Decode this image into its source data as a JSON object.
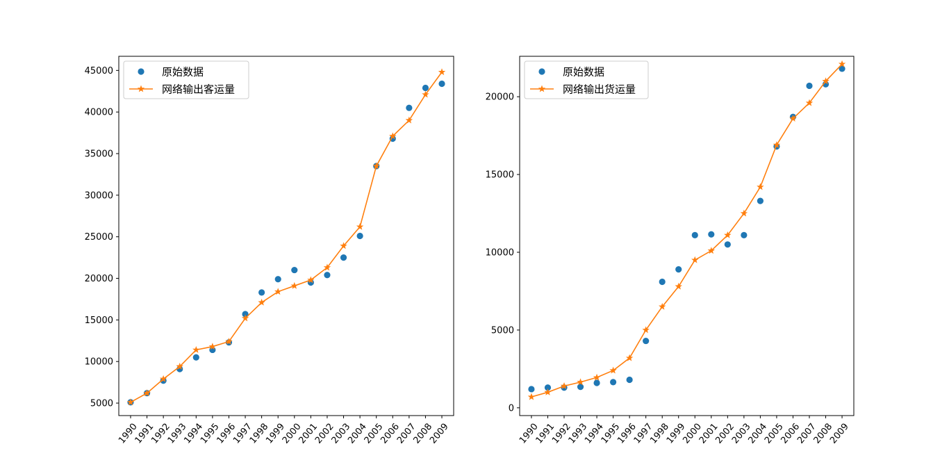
{
  "chart_data": [
    {
      "type": "scatter",
      "x": [
        "1990",
        "1991",
        "1992",
        "1993",
        "1994",
        "1995",
        "1996",
        "1997",
        "1998",
        "1999",
        "2000",
        "2001",
        "2002",
        "2003",
        "2004",
        "2005",
        "2006",
        "2007",
        "2008",
        "2009"
      ],
      "ylim": [
        3500,
        46700
      ],
      "yticks": [
        "5000",
        "10000",
        "15000",
        "20000",
        "25000",
        "30000",
        "35000",
        "40000",
        "45000"
      ],
      "grid": false,
      "legend_position": "top-left",
      "series": [
        {
          "name": "原始数据",
          "kind": "scatter",
          "color": "#1f77b4",
          "values": [
            5100,
            6200,
            7700,
            9100,
            10500,
            11400,
            12300,
            15700,
            18300,
            19900,
            21000,
            19500,
            20400,
            22500,
            25100,
            33500,
            36800,
            40500,
            42900,
            43400
          ]
        },
        {
          "name": "网络输出客运量",
          "kind": "line-star",
          "color": "#ff7f0e",
          "values": [
            5100,
            6200,
            7900,
            9400,
            11400,
            11800,
            12400,
            15200,
            17100,
            18400,
            19100,
            19800,
            21300,
            23900,
            26200,
            33500,
            37100,
            39000,
            42100,
            44800
          ]
        }
      ]
    },
    {
      "type": "scatter",
      "x": [
        "1990",
        "1991",
        "1992",
        "1993",
        "1994",
        "1995",
        "1996",
        "1997",
        "1998",
        "1999",
        "2000",
        "2001",
        "2002",
        "2003",
        "2004",
        "2005",
        "2006",
        "2007",
        "2008",
        "2009"
      ],
      "ylim": [
        -500,
        22600
      ],
      "yticks": [
        "0",
        "5000",
        "10000",
        "15000",
        "20000"
      ],
      "grid": false,
      "legend_position": "top-left",
      "series": [
        {
          "name": "原始数据",
          "kind": "scatter",
          "color": "#1f77b4",
          "values": [
            1200,
            1300,
            1300,
            1350,
            1600,
            1650,
            1800,
            4300,
            8100,
            8900,
            11100,
            11150,
            10500,
            11100,
            13300,
            16800,
            18700,
            20700,
            20800,
            21800
          ]
        },
        {
          "name": "网络输出货运量",
          "kind": "line-star",
          "color": "#ff7f0e",
          "values": [
            700,
            1000,
            1400,
            1650,
            1950,
            2400,
            3200,
            5000,
            6500,
            7800,
            9500,
            10100,
            11100,
            12500,
            14200,
            16900,
            18600,
            19600,
            21000,
            22100
          ]
        }
      ]
    }
  ]
}
